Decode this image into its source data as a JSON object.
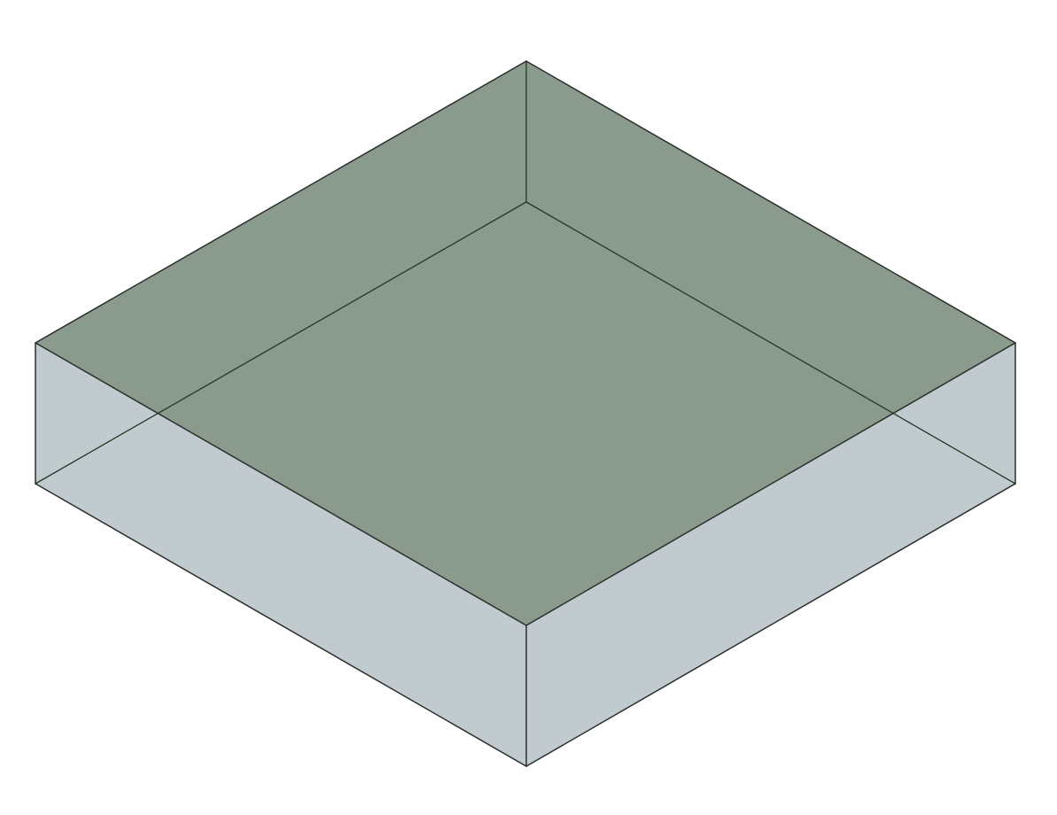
{
  "figure": {
    "kind": "isometric-box",
    "description_visible_text": "",
    "colors": {
      "background": "#ffffff",
      "side_faces": "#c1cacf",
      "top_face": "#8a9a8d",
      "outer_edges": "#2a2f2c",
      "hidden_edges": "#1e3a24"
    }
  }
}
